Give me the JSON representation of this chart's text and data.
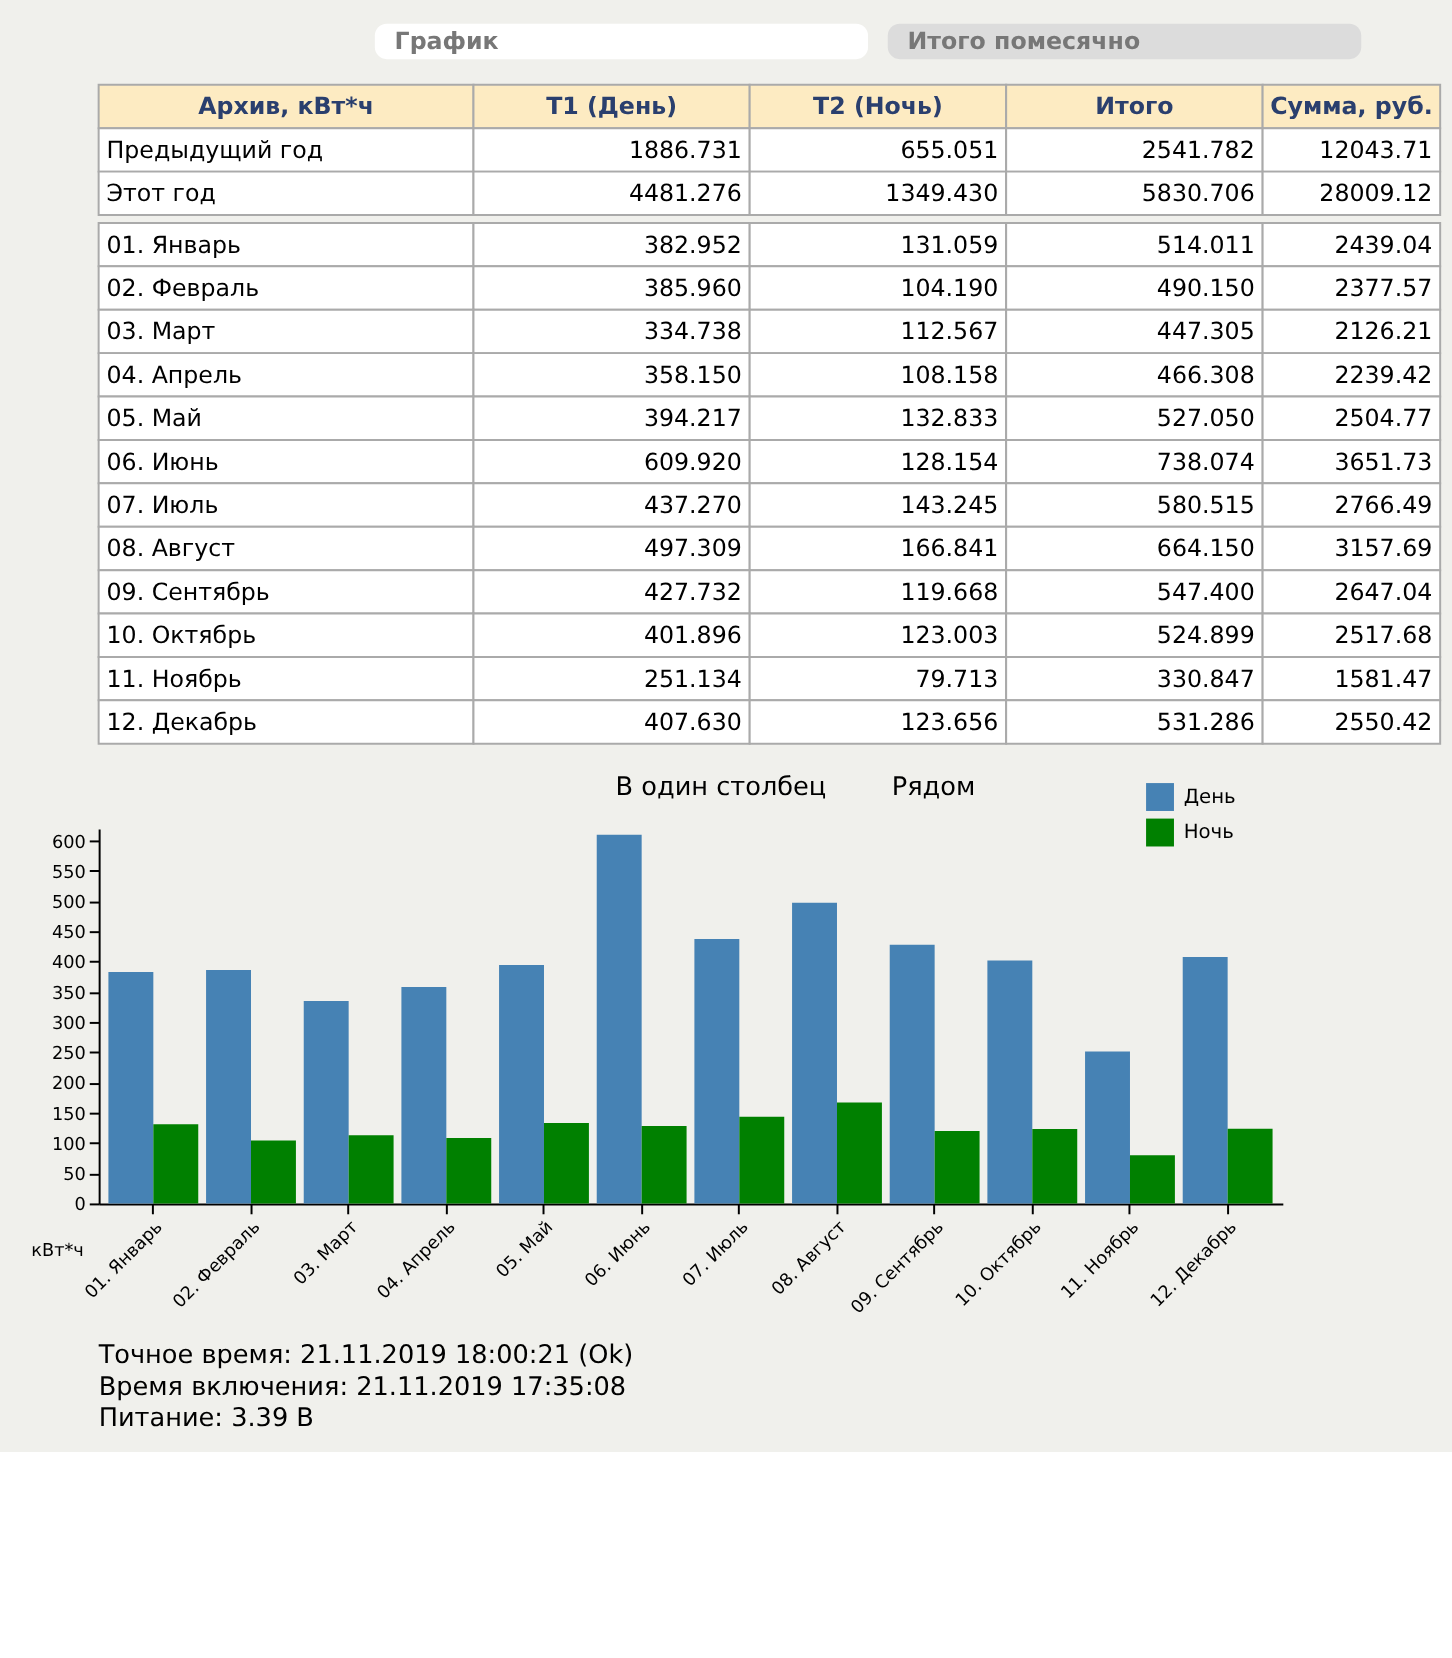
{
  "chart_data": {
    "type": "bar",
    "categories": [
      "01. Январь",
      "02. Февраль",
      "03. Март",
      "04. Апрель",
      "05. Май",
      "06. Июнь",
      "07. Июль",
      "08. Август",
      "09. Сентябрь",
      "10. Октябрь",
      "11. Ноябрь",
      "12. Декабрь"
    ],
    "series": [
      {
        "name": "День",
        "color": "#4682b4",
        "values": [
          382.952,
          385.96,
          334.738,
          358.15,
          394.217,
          609.92,
          437.27,
          497.309,
          427.732,
          401.896,
          251.134,
          407.63
        ]
      },
      {
        "name": "Ночь",
        "color": "#008000",
        "values": [
          131.059,
          104.19,
          112.567,
          108.158,
          132.833,
          128.154,
          143.245,
          166.841,
          119.668,
          123.003,
          79.713,
          123.656
        ]
      }
    ],
    "ylabel": "кВт*ч",
    "ylim": [
      0,
      620
    ],
    "yticks": [
      0,
      50,
      100,
      150,
      200,
      250,
      300,
      350,
      400,
      450,
      500,
      550,
      600
    ],
    "legend": "top right",
    "annotations": [
      "График",
      "Итого помесячно",
      "Архив, кВт*ч",
      "T1 (День)",
      "T2 (Ночь)",
      "Итого",
      "Сумма, руб.",
      "Предыдущий год",
      "1886.731",
      "655.051",
      "2541.782",
      "12043.71",
      "Этот год",
      "4481.276",
      "1349.430",
      "5830.706",
      "28009.12",
      "514.011",
      "490.150",
      "447.305",
      "466.308",
      "527.050",
      "738.074",
      "580.515",
      "664.150",
      "547.400",
      "524.899",
      "330.847",
      "531.286",
      "2439.04",
      "2377.57",
      "2126.21",
      "2239.42",
      "2504.77",
      "3651.73",
      "2766.49",
      "3157.69",
      "2647.04",
      "2517.68",
      "1581.47",
      "2550.42",
      "В один столбец",
      "Рядом",
      "Точное время: 21.11.2019 18:00:21 (Ok)",
      "Время включения: 21.11.2019 17:35:08",
      "Питание: 3.39 В",
      "382.952",
      "385.960",
      "334.738",
      "358.150",
      "394.217",
      "609.920",
      "437.270",
      "497.309",
      "427.732",
      "401.896",
      "251.134",
      "407.630",
      "131.059",
      "104.190",
      "112.567",
      "108.158",
      "132.833",
      "128.154",
      "143.245",
      "166.841",
      "119.668",
      "123.003",
      "79.713",
      "123.656"
    ]
  }
}
